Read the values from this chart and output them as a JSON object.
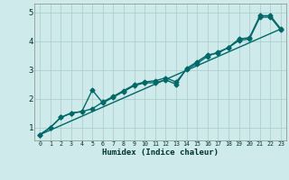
{
  "xlabel": "Humidex (Indice chaleur)",
  "background_color": "#ceeaea",
  "grid_color": "#aecece",
  "line_color": "#006868",
  "xlim": [
    -0.5,
    23.5
  ],
  "ylim": [
    0.55,
    5.3
  ],
  "xticks": [
    0,
    1,
    2,
    3,
    4,
    5,
    6,
    7,
    8,
    9,
    10,
    11,
    12,
    13,
    14,
    15,
    16,
    17,
    18,
    19,
    20,
    21,
    22,
    23
  ],
  "yticks": [
    1,
    2,
    3,
    4,
    5
  ],
  "line1_x": [
    0,
    1,
    2,
    3,
    4,
    5,
    6,
    7,
    8,
    9,
    10,
    11,
    12,
    13,
    14,
    15,
    16,
    17,
    18,
    19,
    20,
    21,
    22,
    23
  ],
  "line1_y": [
    0.75,
    1.0,
    1.35,
    1.5,
    1.55,
    2.3,
    1.85,
    2.05,
    2.25,
    2.45,
    2.55,
    2.55,
    2.65,
    2.5,
    3.05,
    3.28,
    3.52,
    3.58,
    3.78,
    4.07,
    4.12,
    4.88,
    4.88,
    4.42
  ],
  "line2_x": [
    0,
    1,
    2,
    3,
    4,
    5,
    6,
    7,
    8,
    9,
    10,
    11,
    12,
    13,
    14,
    15,
    16,
    17,
    18,
    19,
    20,
    21,
    22,
    23
  ],
  "line2_y": [
    0.75,
    1.0,
    1.35,
    1.5,
    1.55,
    1.65,
    1.88,
    2.08,
    2.28,
    2.48,
    2.58,
    2.62,
    2.72,
    2.58,
    3.02,
    3.22,
    3.47,
    3.62,
    3.77,
    4.02,
    4.07,
    4.83,
    4.83,
    4.38
  ],
  "line3_x": [
    0,
    23
  ],
  "line3_y": [
    0.75,
    4.42
  ],
  "marker_style": "D",
  "marker_size": 2.5,
  "line_width": 1.0
}
